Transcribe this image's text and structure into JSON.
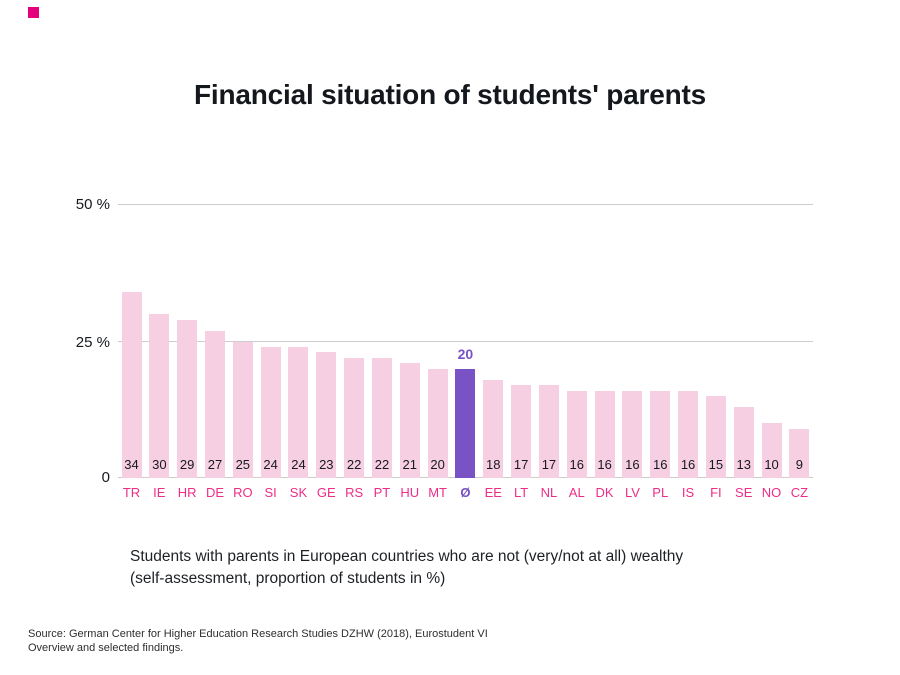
{
  "brand": {
    "color": "#e5007d"
  },
  "header": {
    "title": "Financial situation of students' parents"
  },
  "y_axis": {
    "labels": [
      "50 %",
      "25 %",
      "0"
    ]
  },
  "chart_data": {
    "type": "bar",
    "title": "Financial situation of students' parents",
    "categories": [
      "TR",
      "IE",
      "HR",
      "DE",
      "RO",
      "SI",
      "SK",
      "GE",
      "RS",
      "PT",
      "HU",
      "MT",
      "Ø",
      "EE",
      "LT",
      "NL",
      "AL",
      "DK",
      "LV",
      "PL",
      "IS",
      "FI",
      "SE",
      "NO",
      "CZ"
    ],
    "values": [
      34,
      30,
      29,
      27,
      25,
      24,
      24,
      23,
      22,
      22,
      21,
      20,
      20,
      18,
      17,
      17,
      16,
      16,
      16,
      16,
      16,
      15,
      13,
      10,
      9
    ],
    "highlight": {
      "index": 12,
      "category": "Ø",
      "value": 20
    },
    "ylim": [
      0,
      55
    ],
    "y_gridlines_pct": [
      0,
      25,
      50
    ],
    "legend_position": "none",
    "colors": {
      "bar": "#f7cfe3",
      "highlight_bar": "#7952c5",
      "category_label": "#ee2d87",
      "highlight_label": "#7952c5",
      "value_label": "#16191d",
      "gridline": "#cccccc",
      "title": "#14181c"
    }
  },
  "caption": {
    "line1": "Students with parents in European countries who are not (very/not at all) wealthy",
    "line2": "(self-assessment, proportion of students in %)"
  },
  "source": {
    "line1": "Source: German Center for Higher Education Research Studies DZHW (2018), Eurostudent VI",
    "line2": "Overview and selected findings."
  }
}
